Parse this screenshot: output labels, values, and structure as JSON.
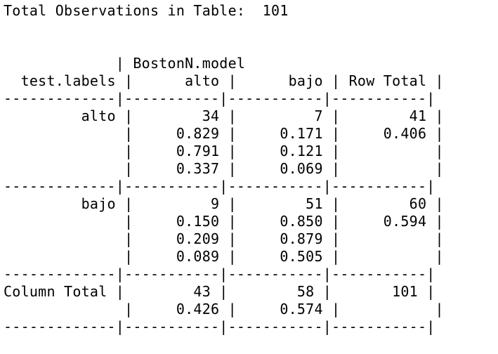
{
  "console": {
    "lines": [
      "",
      "Total Observations in Table:  101",
      "",
      "",
      "             | BostonN.model",
      "  test.labels |      alto |      bajo | Row Total |",
      "-------------|-----------|-----------|-----------|",
      "         alto |        34 |         7 |        41 |",
      "              |     0.829 |     0.171 |     0.406 |",
      "              |     0.791 |     0.121 |           |",
      "              |     0.337 |     0.069 |           |",
      "-------------|-----------|-----------|-----------|",
      "         bajo |         9 |        51 |        60 |",
      "              |     0.150 |     0.850 |     0.594 |",
      "              |     0.209 |     0.879 |           |",
      "              |     0.089 |     0.505 |           |",
      "-------------|-----------|-----------|-----------|",
      "Column Total |        43 |        58 |       101 |",
      "              |     0.426 |     0.574 |           |",
      "-------------|-----------|-----------|-----------|"
    ]
  }
}
